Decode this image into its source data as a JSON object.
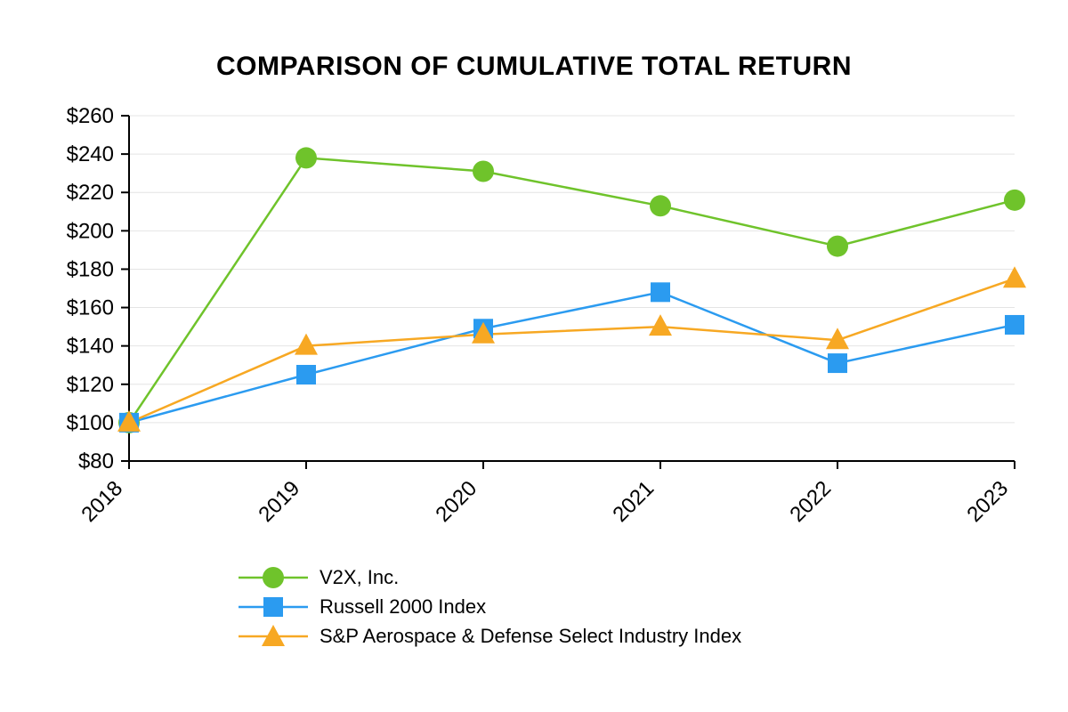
{
  "title": "COMPARISON OF CUMULATIVE TOTAL RETURN",
  "chart_data": {
    "type": "line",
    "title": "COMPARISON OF CUMULATIVE TOTAL RETURN",
    "x": [
      "2018",
      "2019",
      "2020",
      "2021",
      "2022",
      "2023"
    ],
    "series": [
      {
        "name": "V2X, Inc.",
        "marker": "circle",
        "color": "#6fc32b",
        "values": [
          100,
          238,
          231,
          213,
          192,
          216
        ]
      },
      {
        "name": "Russell 2000 Index",
        "marker": "square",
        "color": "#2b9bf0",
        "values": [
          100,
          125,
          149,
          168,
          131,
          151
        ]
      },
      {
        "name": "S&P Aerospace & Defense Select Industry Index",
        "marker": "triangle",
        "color": "#f7a823",
        "values": [
          100,
          140,
          146,
          150,
          143,
          175
        ]
      }
    ],
    "ylim": [
      80,
      260
    ],
    "ytick_step": 20,
    "ytick_prefix": "$",
    "xlabel": "",
    "ylabel": "",
    "grid": "horizontal",
    "legend_position": "bottom-left"
  },
  "colors": {
    "axis": "#000000",
    "grid": "#e4e4e4",
    "text": "#000000",
    "background": "#ffffff"
  }
}
